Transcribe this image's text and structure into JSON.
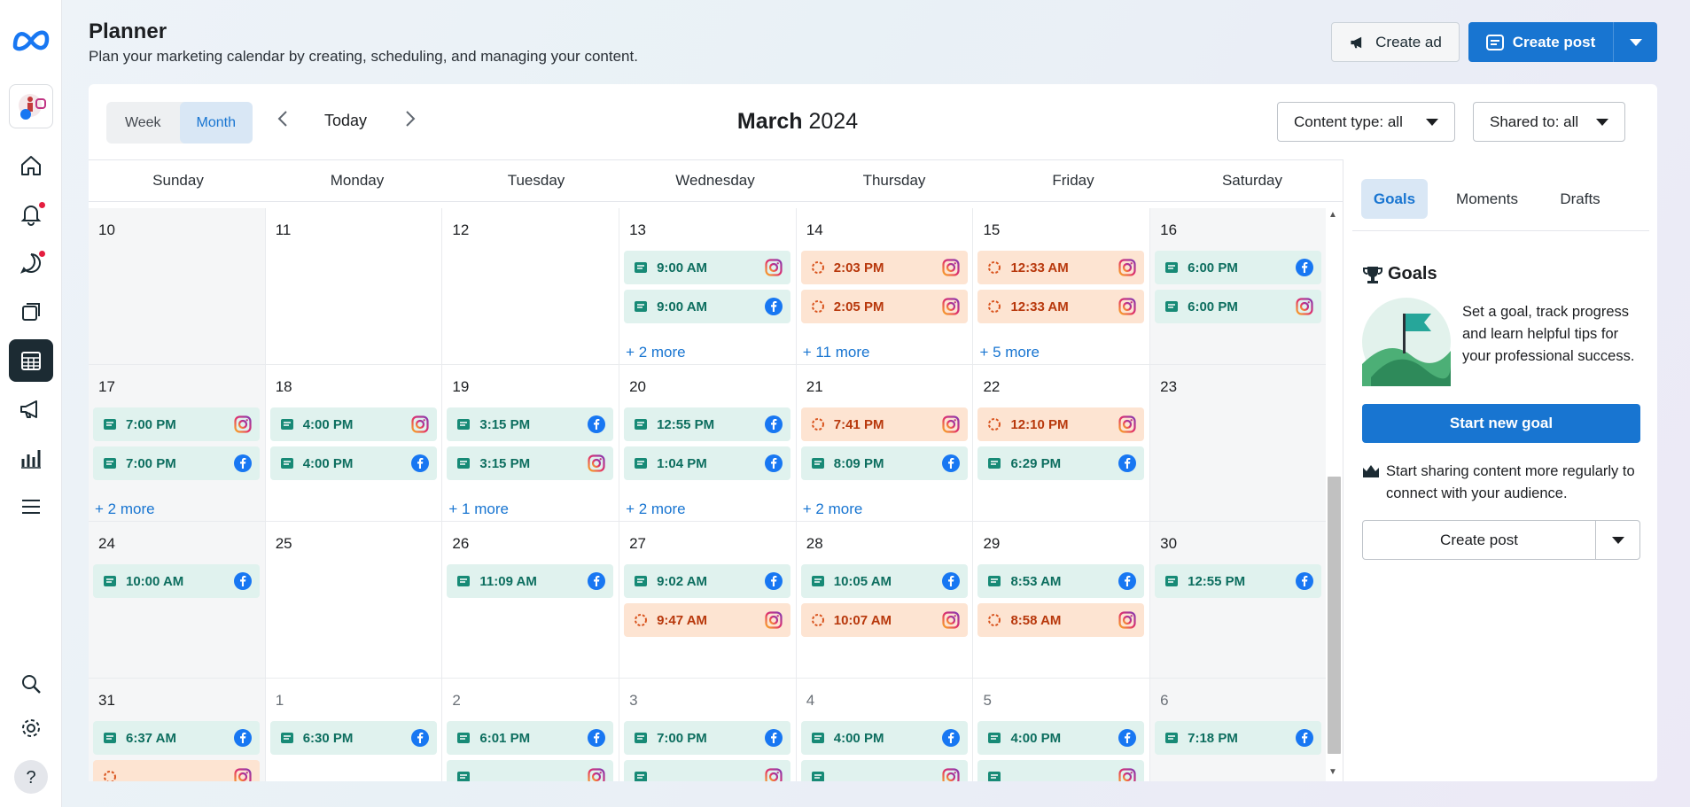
{
  "header": {
    "title": "Planner",
    "subtitle": "Plan your marketing calendar by creating, scheduling, and managing your content.",
    "create_ad_label": "Create ad",
    "create_post_label": "Create post"
  },
  "toolbar": {
    "week_label": "Week",
    "month_label": "Month",
    "today_label": "Today",
    "month": "March",
    "year": "2024",
    "content_type_label": "Content type: all",
    "shared_to_label": "Shared to: all"
  },
  "day_headers": [
    "Sunday",
    "Monday",
    "Tuesday",
    "Wednesday",
    "Thursday",
    "Friday",
    "Saturday"
  ],
  "calendar": [
    [
      {
        "day": "10",
        "gray": true,
        "events": [],
        "more": ""
      },
      {
        "day": "11",
        "events": [],
        "more": ""
      },
      {
        "day": "12",
        "events": [],
        "more": ""
      },
      {
        "day": "13",
        "events": [
          {
            "time": "9:00 AM",
            "status": "scheduled",
            "platform": "instagram"
          },
          {
            "time": "9:00 AM",
            "status": "scheduled",
            "platform": "facebook"
          }
        ],
        "more": "+ 2 more"
      },
      {
        "day": "14",
        "events": [
          {
            "time": "2:03 PM",
            "status": "draft",
            "platform": "instagram"
          },
          {
            "time": "2:05 PM",
            "status": "draft",
            "platform": "instagram"
          }
        ],
        "more": "+ 11 more"
      },
      {
        "day": "15",
        "events": [
          {
            "time": "12:33 AM",
            "status": "draft",
            "platform": "instagram"
          },
          {
            "time": "12:33 AM",
            "status": "draft",
            "platform": "instagram"
          }
        ],
        "more": "+ 5 more"
      },
      {
        "day": "16",
        "gray": true,
        "events": [
          {
            "time": "6:00 PM",
            "status": "scheduled",
            "platform": "facebook"
          },
          {
            "time": "6:00 PM",
            "status": "scheduled",
            "platform": "instagram"
          }
        ],
        "more": ""
      }
    ],
    [
      {
        "day": "17",
        "gray": true,
        "events": [
          {
            "time": "7:00 PM",
            "status": "scheduled",
            "platform": "instagram"
          },
          {
            "time": "7:00 PM",
            "status": "scheduled",
            "platform": "facebook"
          }
        ],
        "more": "+ 2 more"
      },
      {
        "day": "18",
        "events": [
          {
            "time": "4:00 PM",
            "status": "scheduled",
            "platform": "instagram"
          },
          {
            "time": "4:00 PM",
            "status": "scheduled",
            "platform": "facebook"
          }
        ],
        "more": ""
      },
      {
        "day": "19",
        "events": [
          {
            "time": "3:15 PM",
            "status": "scheduled",
            "platform": "facebook"
          },
          {
            "time": "3:15 PM",
            "status": "scheduled",
            "platform": "instagram"
          }
        ],
        "more": "+ 1 more"
      },
      {
        "day": "20",
        "events": [
          {
            "time": "12:55 PM",
            "status": "scheduled",
            "platform": "facebook"
          },
          {
            "time": "1:04 PM",
            "status": "scheduled",
            "platform": "facebook"
          }
        ],
        "more": "+ 2 more"
      },
      {
        "day": "21",
        "events": [
          {
            "time": "7:41 PM",
            "status": "draft",
            "platform": "instagram"
          },
          {
            "time": "8:09 PM",
            "status": "scheduled",
            "platform": "facebook"
          }
        ],
        "more": "+ 2 more"
      },
      {
        "day": "22",
        "events": [
          {
            "time": "12:10 PM",
            "status": "draft",
            "platform": "instagram"
          },
          {
            "time": "6:29 PM",
            "status": "scheduled",
            "platform": "facebook"
          }
        ],
        "more": ""
      },
      {
        "day": "23",
        "gray": true,
        "events": [],
        "more": ""
      }
    ],
    [
      {
        "day": "24",
        "gray": true,
        "events": [
          {
            "time": "10:00 AM",
            "status": "scheduled",
            "platform": "facebook"
          }
        ],
        "more": ""
      },
      {
        "day": "25",
        "events": [],
        "more": ""
      },
      {
        "day": "26",
        "events": [
          {
            "time": "11:09 AM",
            "status": "scheduled",
            "platform": "facebook"
          }
        ],
        "more": ""
      },
      {
        "day": "27",
        "events": [
          {
            "time": "9:02 AM",
            "status": "scheduled",
            "platform": "facebook"
          },
          {
            "time": "9:47 AM",
            "status": "draft",
            "platform": "instagram"
          }
        ],
        "more": ""
      },
      {
        "day": "28",
        "events": [
          {
            "time": "10:05 AM",
            "status": "scheduled",
            "platform": "facebook"
          },
          {
            "time": "10:07 AM",
            "status": "draft",
            "platform": "instagram"
          }
        ],
        "more": ""
      },
      {
        "day": "29",
        "events": [
          {
            "time": "8:53 AM",
            "status": "scheduled",
            "platform": "facebook"
          },
          {
            "time": "8:58 AM",
            "status": "draft",
            "platform": "instagram"
          }
        ],
        "more": ""
      },
      {
        "day": "30",
        "gray": true,
        "events": [
          {
            "time": "12:55 PM",
            "status": "scheduled",
            "platform": "facebook"
          }
        ],
        "more": ""
      }
    ],
    [
      {
        "day": "31",
        "gray": true,
        "events": [
          {
            "time": "6:37 AM",
            "status": "scheduled",
            "platform": "facebook"
          },
          {
            "time": "",
            "status": "draft",
            "platform": "instagram"
          }
        ],
        "more": ""
      },
      {
        "day": "1",
        "faded": true,
        "events": [
          {
            "time": "6:30 PM",
            "status": "scheduled",
            "platform": "facebook"
          }
        ],
        "more": ""
      },
      {
        "day": "2",
        "faded": true,
        "events": [
          {
            "time": "6:01 PM",
            "status": "scheduled",
            "platform": "facebook"
          },
          {
            "time": "",
            "status": "scheduled",
            "platform": "instagram"
          }
        ],
        "more": ""
      },
      {
        "day": "3",
        "faded": true,
        "events": [
          {
            "time": "7:00 PM",
            "status": "scheduled",
            "platform": "facebook"
          },
          {
            "time": "",
            "status": "scheduled",
            "platform": "instagram"
          }
        ],
        "more": ""
      },
      {
        "day": "4",
        "faded": true,
        "events": [
          {
            "time": "4:00 PM",
            "status": "scheduled",
            "platform": "facebook"
          },
          {
            "time": "",
            "status": "scheduled",
            "platform": "instagram"
          }
        ],
        "more": ""
      },
      {
        "day": "5",
        "faded": true,
        "events": [
          {
            "time": "4:00 PM",
            "status": "scheduled",
            "platform": "facebook"
          },
          {
            "time": "",
            "status": "scheduled",
            "platform": "instagram"
          }
        ],
        "more": ""
      },
      {
        "day": "6",
        "faded": true,
        "gray": true,
        "events": [
          {
            "time": "7:18 PM",
            "status": "scheduled",
            "platform": "facebook"
          }
        ],
        "more": ""
      }
    ]
  ],
  "panel": {
    "tabs": [
      "Goals",
      "Moments",
      "Drafts"
    ],
    "goals_title": "Goals",
    "goals_desc": "Set a goal, track progress and learn helpful tips for your professional success.",
    "start_goal_label": "Start new goal",
    "share_hint": "Start sharing content more regularly to connect with your audience.",
    "create_post_label": "Create post"
  },
  "colors": {
    "accent": "#1875d1",
    "scheduled_bg": "#e0f2ee",
    "scheduled_text": "#0d6e5f",
    "draft_bg": "#fde4d2",
    "draft_text": "#b8380c",
    "nav_active": "#1c2b33"
  },
  "icons": {
    "rail": [
      "meta-logo",
      "home-icon",
      "bell-icon",
      "chat-icon",
      "posts-icon",
      "calendar-icon",
      "megaphone-icon",
      "insights-icon",
      "menu-icon",
      "search-icon",
      "gear-icon",
      "help-icon"
    ]
  }
}
